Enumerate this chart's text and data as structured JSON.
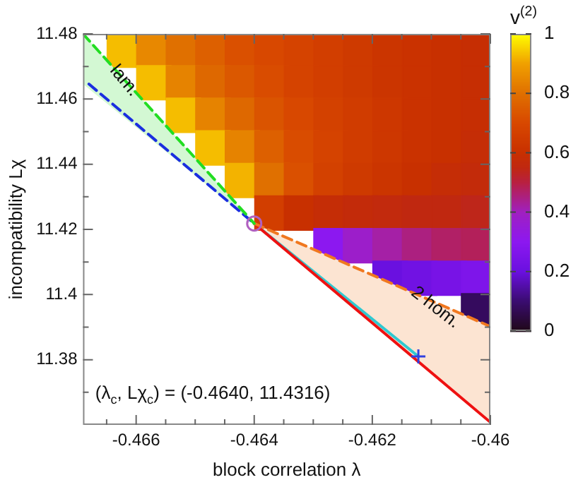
{
  "chart_data": {
    "type": "scatter",
    "xlabel": "block correlation λ",
    "ylabel": "incompatibility Lχ",
    "clabel": "v$^{(2)}$",
    "xlim": [
      -0.4669,
      -0.46
    ],
    "ylim": [
      11.36,
      11.48
    ],
    "xticks": [
      {
        "value": -0.4665,
        "label": null
      },
      -0.466,
      {
        "value": -0.4655,
        "label": null
      },
      {
        "value": -0.465,
        "label": null
      },
      {
        "value": -0.4645,
        "label": null
      },
      -0.464,
      {
        "value": -0.4635,
        "label": null
      },
      {
        "value": -0.463,
        "label": null
      },
      {
        "value": -0.4625,
        "label": null
      },
      -0.462,
      {
        "value": -0.4615,
        "label": null
      },
      {
        "value": -0.461,
        "label": null
      },
      {
        "value": -0.4605,
        "label": null
      },
      -0.46
    ],
    "yticks": [
      {
        "value": 11.37,
        "label": null
      },
      11.38,
      {
        "value": 11.39,
        "label": null
      },
      11.4,
      {
        "value": 11.41,
        "label": null
      },
      11.42,
      {
        "value": 11.43,
        "label": null
      },
      11.44,
      {
        "value": 11.45,
        "label": null
      },
      11.46,
      {
        "value": 11.47,
        "label": null
      },
      11.48
    ],
    "clim": [
      0,
      1
    ],
    "cticks": [
      0,
      0.2,
      0.4,
      0.6,
      0.8,
      1
    ],
    "annotations": [
      {
        "text": "lam.",
        "x": -0.4662,
        "y": 11.4656
      },
      "2 hom.",
      "(λ$_{c}$, Lχ$_{c}$) = (-0.4640, 11.4316)"
    ],
    "series": [
      {
        "type": "scatter",
        "marker": "square",
        "x": [
          -0.4662,
          -0.4657,
          -0.4652,
          -0.4647,
          -0.4642,
          -0.4637,
          -0.4632,
          -0.4627,
          -0.4622,
          -0.4617,
          -0.4612,
          -0.4607,
          -0.4602,
          -0.4657,
          -0.4652,
          -0.4647,
          -0.4642,
          -0.4637,
          -0.4632,
          -0.4627,
          -0.4622,
          -0.4617,
          -0.4612,
          -0.4607,
          -0.4602,
          -0.4652,
          -0.4647,
          -0.4642,
          -0.4637,
          -0.4632,
          -0.4627,
          -0.4622,
          -0.4617,
          -0.4612,
          -0.4607,
          -0.4602,
          -0.4647,
          -0.4642,
          -0.4637,
          -0.4632,
          -0.4627,
          -0.4622,
          -0.4617,
          -0.4612,
          -0.4607,
          -0.4602,
          -0.4642,
          -0.4637,
          -0.4632,
          -0.4627,
          -0.4622,
          -0.4617,
          -0.4612,
          -0.4607,
          -0.4602,
          -0.4637,
          -0.4632,
          -0.4627,
          -0.4622,
          -0.4617,
          -0.4612,
          -0.4607,
          -0.4602,
          -0.4627,
          -0.4622,
          -0.4617,
          -0.4612,
          -0.4607,
          -0.4602,
          -0.4617,
          -0.4612,
          -0.4607,
          -0.4602,
          -0.4602
        ],
        "values": [
          11.475,
          11.475,
          11.475,
          11.475,
          11.475,
          11.475,
          11.475,
          11.475,
          11.475,
          11.475,
          11.475,
          11.475,
          11.475,
          11.465,
          11.465,
          11.465,
          11.465,
          11.465,
          11.465,
          11.465,
          11.465,
          11.465,
          11.465,
          11.465,
          11.465,
          11.455,
          11.455,
          11.455,
          11.455,
          11.455,
          11.455,
          11.455,
          11.455,
          11.455,
          11.455,
          11.455,
          11.445,
          11.445,
          11.445,
          11.445,
          11.445,
          11.445,
          11.445,
          11.445,
          11.445,
          11.445,
          11.435,
          11.435,
          11.435,
          11.435,
          11.435,
          11.435,
          11.435,
          11.435,
          11.435,
          11.425,
          11.425,
          11.425,
          11.425,
          11.425,
          11.425,
          11.425,
          11.425,
          11.415,
          11.415,
          11.415,
          11.415,
          11.415,
          11.415,
          11.405,
          11.405,
          11.405,
          11.405,
          11.395
        ],
        "colors": [
          "#f5bd00",
          "#e88800",
          "#e07000",
          "#dd6000",
          "#da5000",
          "#d84800",
          "#d54300",
          "#d23e00",
          "#ce3a00",
          "#cb3500",
          "#ca3200",
          "#c83000",
          "#c62e03",
          "#f5bd00",
          "#e68300",
          "#de6800",
          "#db5800",
          "#d94c00",
          "#d54300",
          "#d23e00",
          "#ce3a00",
          "#cb3500",
          "#ca3200",
          "#c83000",
          "#c62e03",
          "#f5bd00",
          "#e68300",
          "#de6800",
          "#da5400",
          "#d84800",
          "#d34100",
          "#d03c00",
          "#cd3700",
          "#ca3200",
          "#c83000",
          "#c62e03",
          "#f5bd00",
          "#e68300",
          "#dd6000",
          "#d94c00",
          "#d54300",
          "#d03c00",
          "#cd3700",
          "#ca3200",
          "#c83000",
          "#c52d06",
          "#f3b300",
          "#e07000",
          "#da5000",
          "#d34100",
          "#ce3a00",
          "#cb3500",
          "#c83000",
          "#c52d06",
          "#c32b0a",
          "#d23e00",
          "#c83000",
          "#c52d06",
          "#c32b0a",
          "#c22a0d",
          "#c02810",
          "#c02810",
          "#be261a",
          "#8c18f0",
          "#9c1eca",
          "#a520a6",
          "#ac2080",
          "#b12066",
          "#b3205a",
          "#6a10e0",
          "#7112e3",
          "#7813e6",
          "#7e15ea",
          "#350b5e"
        ],
        "cvalues": [
          0.93,
          0.85,
          0.8,
          0.76,
          0.72,
          0.7,
          0.68,
          0.66,
          0.64,
          0.62,
          0.61,
          0.6,
          0.59,
          0.93,
          0.84,
          0.78,
          0.74,
          0.71,
          0.68,
          0.66,
          0.64,
          0.62,
          0.61,
          0.6,
          0.59,
          0.93,
          0.84,
          0.78,
          0.73,
          0.7,
          0.67,
          0.65,
          0.63,
          0.61,
          0.6,
          0.59,
          0.93,
          0.84,
          0.76,
          0.71,
          0.68,
          0.65,
          0.63,
          0.61,
          0.6,
          0.58,
          0.92,
          0.8,
          0.72,
          0.67,
          0.64,
          0.62,
          0.6,
          0.58,
          0.57,
          0.66,
          0.6,
          0.58,
          0.57,
          0.56,
          0.55,
          0.55,
          0.54,
          0.3,
          0.38,
          0.42,
          0.45,
          0.47,
          0.48,
          0.2,
          0.22,
          0.24,
          0.26,
          0.08
        ]
      },
      {
        "type": "line",
        "color": "#22dd22",
        "line_style": "dashed",
        "x": [
          -0.4669,
          -0.464
        ],
        "values": [
          11.48,
          11.4218
        ],
        "lower": [
          11.4646,
          11.4218
        ],
        "upper": [
          11.48,
          11.4218
        ]
      },
      {
        "type": "line",
        "color": "#1a2ee0",
        "line_style": "dashed",
        "x": [
          -0.4668,
          -0.464
        ],
        "values": [
          11.4646,
          11.4218
        ]
      },
      {
        "type": "line",
        "color": "#f07820",
        "line_style": "dashed",
        "x": [
          -0.464,
          -0.46
        ],
        "values": [
          11.4218,
          11.3902
        ],
        "lower": [
          11.4218,
          11.3608
        ],
        "upper": [
          11.4218,
          11.3902
        ]
      },
      {
        "type": "line",
        "color": "#ee1111",
        "line_style": "solid",
        "x": [
          -0.464,
          -0.46
        ],
        "values": [
          11.4218,
          11.3608
        ]
      },
      {
        "type": "line",
        "color": "#30c8d0",
        "line_style": "solid",
        "x": [
          -0.464,
          -0.46122
        ],
        "values": [
          11.4218,
          11.381
        ]
      },
      {
        "type": "scatter",
        "marker": "circle",
        "color": "#b060c0",
        "x": [
          -0.464
        ],
        "values": [
          11.4218
        ]
      },
      {
        "type": "scatter",
        "marker": "cross",
        "color": "#3040e0",
        "x": [
          -0.46122
        ],
        "values": [
          11.381
        ]
      }
    ]
  }
}
